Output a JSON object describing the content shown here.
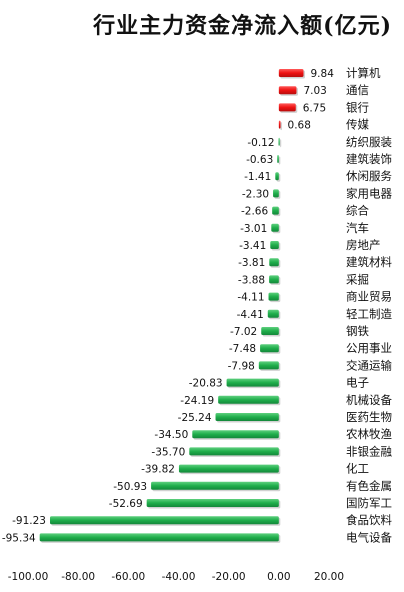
{
  "chart_data": {
    "type": "bar",
    "orientation": "horizontal",
    "title": "行业主力资金净流入额(亿元)",
    "xlabel": "",
    "ylabel": "",
    "xlim": [
      -100,
      20
    ],
    "xticks": [
      "-100.00",
      "-80.00",
      "-60.00",
      "-40.00",
      "-20.00",
      "0.00",
      "20.00"
    ],
    "xtick_values": [
      -100,
      -80,
      -60,
      -40,
      -20,
      0,
      20
    ],
    "grid": false,
    "legend": "none",
    "colors": {
      "positive": "#ee1111",
      "negative": "#1fae4b"
    },
    "categories": [
      "计算机",
      "通信",
      "银行",
      "传媒",
      "纺织服装",
      "建筑装饰",
      "休闲服务",
      "家用电器",
      "综合",
      "汽车",
      "房地产",
      "建筑材料",
      "采掘",
      "商业贸易",
      "轻工制造",
      "钢铁",
      "公用事业",
      "交通运输",
      "电子",
      "机械设备",
      "医药生物",
      "农林牧渔",
      "非银金融",
      "化工",
      "有色金属",
      "国防军工",
      "食品饮料",
      "电气设备"
    ],
    "values": [
      9.84,
      7.03,
      6.75,
      0.68,
      -0.12,
      -0.63,
      -1.41,
      -2.3,
      -2.66,
      -3.01,
      -3.41,
      -3.81,
      -3.88,
      -4.11,
      -4.41,
      -7.02,
      -7.48,
      -7.98,
      -20.83,
      -24.19,
      -25.24,
      -34.5,
      -35.7,
      -39.82,
      -50.93,
      -52.69,
      -91.23,
      -95.34
    ],
    "value_labels": [
      "9.84",
      "7.03",
      "6.75",
      "0.68",
      "-0.12",
      "-0.63",
      "-1.41",
      "-2.30",
      "-2.66",
      "-3.01",
      "-3.41",
      "-3.81",
      "-3.88",
      "-4.11",
      "-4.41",
      "-7.02",
      "-7.48",
      "-7.98",
      "-20.83",
      "-24.19",
      "-25.24",
      "-34.50",
      "-35.70",
      "-39.82",
      "-50.93",
      "-52.69",
      "-91.23",
      "-95.34"
    ]
  }
}
